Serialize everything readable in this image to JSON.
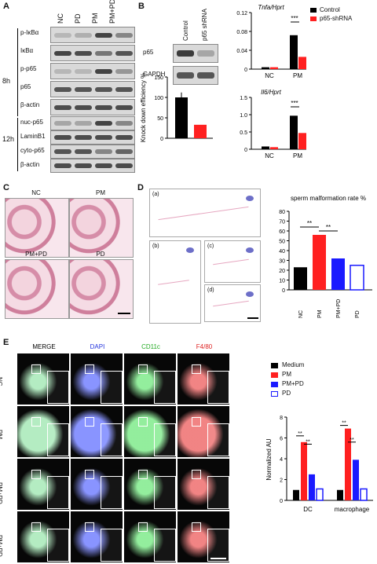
{
  "panels": {
    "A": {
      "label": "A",
      "lanes": [
        "NC",
        "PD",
        "PM",
        "PM+PD"
      ],
      "time_8h": "8h",
      "time_12h": "12h",
      "rows_8h": [
        "p-IκBα",
        "IκBα",
        "p-p65",
        "p65",
        "β-actin"
      ],
      "rows_12h": [
        "nuc-p65",
        "LaminB1",
        "cyto-p65",
        "β-actin"
      ]
    },
    "B": {
      "label": "B",
      "lanes": [
        "Control",
        "p65 shRNA"
      ],
      "rows": [
        "p65",
        "GAPDH"
      ]
    },
    "C": {
      "label": "C",
      "tiles": [
        "NC",
        "PM",
        "PM+PD",
        "PD"
      ]
    },
    "D": {
      "label": "D",
      "sub": [
        "(a)",
        "(b)",
        "(c)",
        "(d)"
      ]
    },
    "E": {
      "label": "E",
      "columns": [
        "MERGE",
        "DAPI",
        "CD11c",
        "F4/80"
      ],
      "rows": [
        "NC",
        "PM",
        "PM+PD",
        "PM+PD"
      ]
    },
    "colors": {
      "control": "#000000",
      "shrna": "#ff2020",
      "medium": "#000000",
      "pm": "#ff2020",
      "pmpd": "#1a1aff",
      "pd": "#1a1aff"
    }
  },
  "chart_data": [
    {
      "type": "bar",
      "title": "Tnfa/Hprt",
      "categories": [
        "NC",
        "PM"
      ],
      "series": [
        {
          "name": "Control",
          "values": [
            0.004,
            0.072
          ]
        },
        {
          "name": "p65-shRNA",
          "values": [
            0.004,
            0.026
          ]
        }
      ],
      "ylim": [
        0,
        0.12
      ],
      "yticks": [
        "0",
        "0.04",
        "0.08",
        "0.12"
      ],
      "annotation": "***",
      "legend": [
        "Control",
        "p65-shRNA"
      ]
    },
    {
      "type": "bar",
      "title": "Il6/Hprt",
      "categories": [
        "NC",
        "PM"
      ],
      "series": [
        {
          "name": "Control",
          "values": [
            0.08,
            0.97
          ]
        },
        {
          "name": "p65-shRNA",
          "values": [
            0.06,
            0.47
          ]
        }
      ],
      "ylim": [
        0,
        1.5
      ],
      "yticks": [
        "0",
        "0.5",
        "1.0",
        "1.5"
      ],
      "annotation": "***"
    },
    {
      "type": "bar",
      "ylabel": "Knock down efficiency %",
      "categories": [
        "Control",
        "p65 shRNA"
      ],
      "values": [
        100,
        33
      ],
      "ylim": [
        0,
        150
      ],
      "yticks": [
        "0",
        "50",
        "100",
        "150"
      ]
    },
    {
      "type": "bar",
      "title": "sperm malformation rate %",
      "categories": [
        "NC",
        "PM",
        "PM+PD",
        "PD"
      ],
      "values": [
        23,
        56,
        32,
        25
      ],
      "ylim": [
        0,
        80
      ],
      "yticks": [
        "0",
        "10",
        "20",
        "30",
        "40",
        "50",
        "60",
        "70",
        "80"
      ],
      "annotations": [
        "**",
        "**"
      ]
    },
    {
      "type": "bar",
      "ylabel": "Normalized AU",
      "categories": [
        "DC",
        "macrophage"
      ],
      "series": [
        {
          "name": "Medium",
          "values": [
            1.0,
            1.0
          ]
        },
        {
          "name": "PM",
          "values": [
            5.6,
            6.9
          ]
        },
        {
          "name": "PM+PD",
          "values": [
            2.5,
            3.9
          ]
        },
        {
          "name": "PD",
          "values": [
            1.1,
            1.1
          ]
        }
      ],
      "ylim": [
        0,
        8
      ],
      "yticks": [
        "0",
        "2",
        "4",
        "6",
        "8"
      ],
      "legend": [
        "Medium",
        "PM",
        "PM+PD",
        "PD"
      ],
      "annotations": [
        "**",
        "**",
        "**",
        "**"
      ]
    }
  ]
}
